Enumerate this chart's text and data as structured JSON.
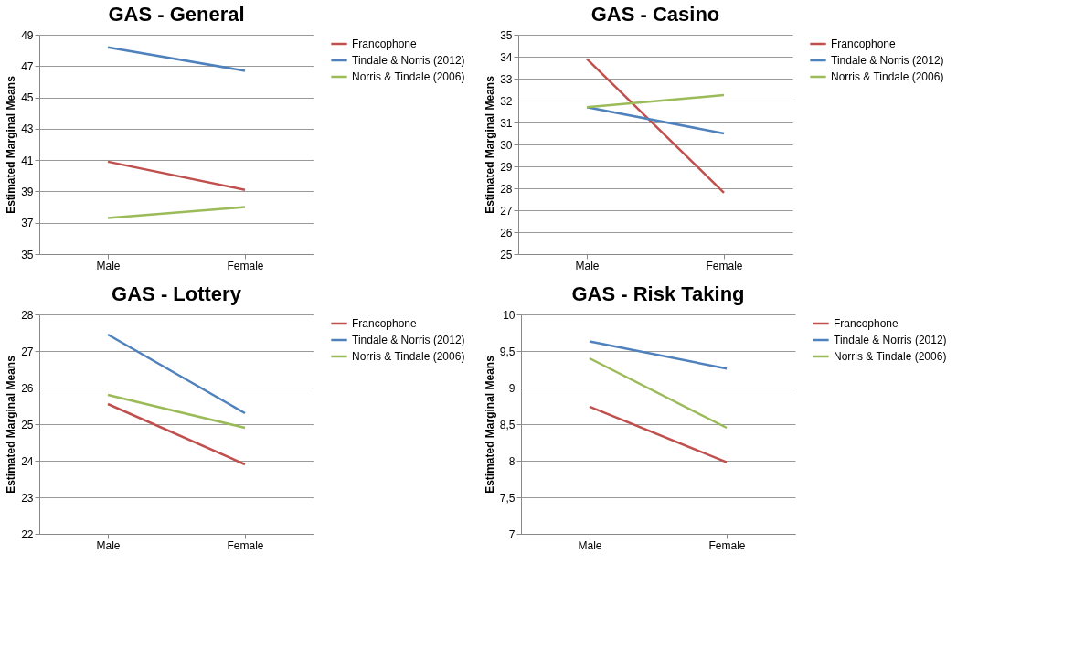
{
  "chart_data": [
    {
      "type": "line",
      "title": "GAS - General",
      "ylabel": "Estimated Marginal Means",
      "categories": [
        "Male",
        "Female"
      ],
      "ylim": [
        35,
        49
      ],
      "yticks": [
        35,
        37,
        39,
        41,
        43,
        45,
        47,
        49
      ],
      "grid": "y",
      "legend": "right",
      "marker": "none",
      "series": [
        {
          "name": "Francophone",
          "color": "#c0504d",
          "values": [
            40.9,
            39.1
          ]
        },
        {
          "name": "Tindale & Norris (2012)",
          "color": "#4f81bd",
          "values": [
            48.2,
            46.7
          ]
        },
        {
          "name": "Norris & Tindale (2006)",
          "color": "#9bbb59",
          "values": [
            37.3,
            38.0
          ]
        }
      ]
    },
    {
      "type": "line",
      "title": "GAS - Casino",
      "ylabel": "Estimated Marginal Means",
      "categories": [
        "Male",
        "Female"
      ],
      "ylim": [
        25,
        35
      ],
      "yticks": [
        25,
        26,
        27,
        28,
        29,
        30,
        31,
        32,
        33,
        34,
        35
      ],
      "grid": "y",
      "legend": "right",
      "marker": "none",
      "series": [
        {
          "name": "Francophone",
          "color": "#c0504d",
          "values": [
            33.9,
            27.8
          ]
        },
        {
          "name": "Tindale & Norris (2012)",
          "color": "#4f81bd",
          "values": [
            31.7,
            30.5
          ]
        },
        {
          "name": "Norris & Tindale (2006)",
          "color": "#9bbb59",
          "values": [
            31.7,
            32.25
          ]
        }
      ]
    },
    {
      "type": "line",
      "title": "GAS - Lottery",
      "ylabel": "Estimated Marginal Means",
      "categories": [
        "Male",
        "Female"
      ],
      "ylim": [
        22,
        28
      ],
      "yticks": [
        22,
        23,
        24,
        25,
        26,
        27,
        28
      ],
      "grid": "y",
      "legend": "right",
      "marker": "none",
      "series": [
        {
          "name": "Francophone",
          "color": "#c0504d",
          "values": [
            25.55,
            23.9
          ]
        },
        {
          "name": "Tindale & Norris (2012)",
          "color": "#4f81bd",
          "values": [
            27.45,
            25.3
          ]
        },
        {
          "name": "Norris & Tindale (2006)",
          "color": "#9bbb59",
          "values": [
            25.8,
            24.9
          ]
        }
      ]
    },
    {
      "type": "line",
      "title": "GAS - Risk Taking",
      "ylabel": "Estimated Marginal Means",
      "categories": [
        "Male",
        "Female"
      ],
      "ylim": [
        7,
        10
      ],
      "yticks": [
        7,
        {
          "value": 7.5,
          "label": "7,5"
        },
        8,
        {
          "value": 8.5,
          "label": "8,5"
        },
        9,
        {
          "value": 9.5,
          "label": "9,5"
        },
        10
      ],
      "grid": "y",
      "legend": "right",
      "marker": "none",
      "series": [
        {
          "name": "Francophone",
          "color": "#c0504d",
          "values": [
            8.74,
            7.98
          ]
        },
        {
          "name": "Tindale & Norris (2012)",
          "color": "#4f81bd",
          "values": [
            9.63,
            9.26
          ]
        },
        {
          "name": "Norris & Tindale (2006)",
          "color": "#9bbb59",
          "values": [
            9.4,
            8.45
          ]
        }
      ]
    }
  ]
}
